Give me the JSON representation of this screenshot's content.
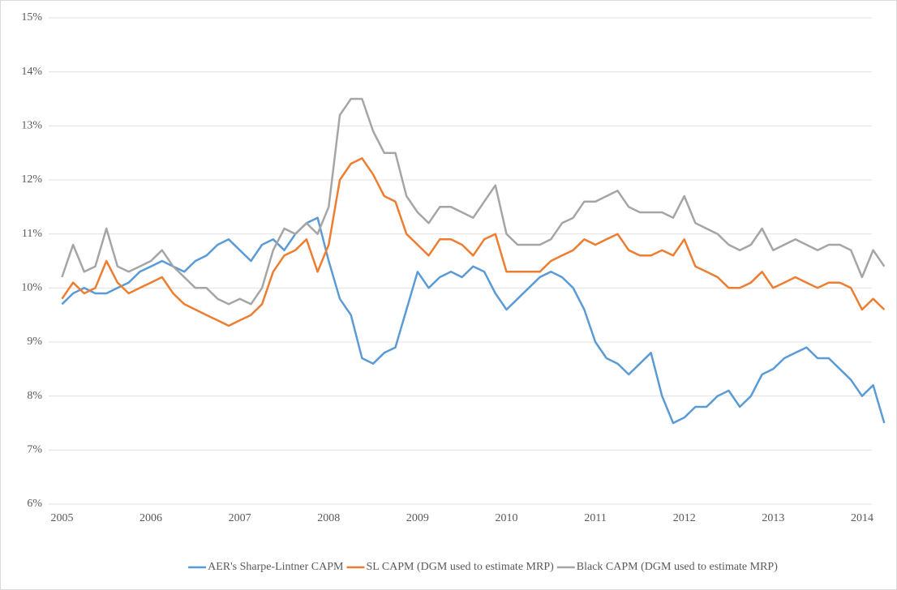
{
  "chart_data": {
    "type": "line",
    "x": [
      2005,
      2005.125,
      2005.25,
      2005.375,
      2005.5,
      2005.625,
      2005.75,
      2005.875,
      2006,
      2006.125,
      2006.25,
      2006.375,
      2006.5,
      2006.625,
      2006.75,
      2006.875,
      2007,
      2007.125,
      2007.25,
      2007.375,
      2007.5,
      2007.625,
      2007.75,
      2007.875,
      2008,
      2008.125,
      2008.25,
      2008.375,
      2008.5,
      2008.625,
      2008.75,
      2008.875,
      2009,
      2009.125,
      2009.25,
      2009.375,
      2009.5,
      2009.625,
      2009.75,
      2009.875,
      2010,
      2010.125,
      2010.25,
      2010.375,
      2010.5,
      2010.625,
      2010.75,
      2010.875,
      2011,
      2011.125,
      2011.25,
      2011.375,
      2011.5,
      2011.625,
      2011.75,
      2011.875,
      2012,
      2012.125,
      2012.25,
      2012.375,
      2012.5,
      2012.625,
      2012.75,
      2012.875,
      2013,
      2013.125,
      2013.25,
      2013.375,
      2013.5,
      2013.625,
      2013.75,
      2013.875,
      2014,
      2014.125,
      2014.25
    ],
    "series": [
      {
        "name": "AER's Sharpe-Lintner CAPM",
        "color": "#5b9bd5",
        "values": [
          9.7,
          9.9,
          10.0,
          9.9,
          9.9,
          10.0,
          10.1,
          10.3,
          10.4,
          10.5,
          10.4,
          10.3,
          10.5,
          10.6,
          10.8,
          10.9,
          10.7,
          10.5,
          10.8,
          10.9,
          10.7,
          11.0,
          11.2,
          11.3,
          10.5,
          9.8,
          9.5,
          8.7,
          8.6,
          8.8,
          8.9,
          9.6,
          10.3,
          10.0,
          10.2,
          10.3,
          10.2,
          10.4,
          10.3,
          9.9,
          9.6,
          9.8,
          10.0,
          10.2,
          10.3,
          10.2,
          10.0,
          9.6,
          9.0,
          8.7,
          8.6,
          8.4,
          8.6,
          8.8,
          8.0,
          7.5,
          7.6,
          7.8,
          7.8,
          8.0,
          8.1,
          7.8,
          8.0,
          8.4,
          8.5,
          8.7,
          8.8,
          8.9,
          8.7,
          8.7,
          8.5,
          8.3,
          8.0,
          8.2,
          7.5
        ]
      },
      {
        "name": "SL CAPM (DGM used to estimate MRP)",
        "color": "#ed7d31",
        "values": [
          9.8,
          10.1,
          9.9,
          10.0,
          10.5,
          10.1,
          9.9,
          10.0,
          10.1,
          10.2,
          9.9,
          9.7,
          9.6,
          9.5,
          9.4,
          9.3,
          9.4,
          9.5,
          9.7,
          10.3,
          10.6,
          10.7,
          10.9,
          10.3,
          10.8,
          12.0,
          12.3,
          12.4,
          12.1,
          11.7,
          11.6,
          11.0,
          10.8,
          10.6,
          10.9,
          10.9,
          10.8,
          10.6,
          10.9,
          11.0,
          10.3,
          10.3,
          10.3,
          10.3,
          10.5,
          10.6,
          10.7,
          10.9,
          10.8,
          10.9,
          11.0,
          10.7,
          10.6,
          10.6,
          10.7,
          10.6,
          10.9,
          10.4,
          10.3,
          10.2,
          10.0,
          10.0,
          10.1,
          10.3,
          10.0,
          10.1,
          10.2,
          10.1,
          10.0,
          10.1,
          10.1,
          10.0,
          9.6,
          9.8,
          9.6
        ]
      },
      {
        "name": "Black CAPM (DGM used to estimate MRP)",
        "color": "#a5a5a5",
        "values": [
          10.2,
          10.8,
          10.3,
          10.4,
          11.1,
          10.4,
          10.3,
          10.4,
          10.5,
          10.7,
          10.4,
          10.2,
          10.0,
          10.0,
          9.8,
          9.7,
          9.8,
          9.7,
          10.0,
          10.7,
          11.1,
          11.0,
          11.2,
          11.0,
          11.5,
          13.2,
          13.5,
          13.5,
          12.9,
          12.5,
          12.5,
          11.7,
          11.4,
          11.2,
          11.5,
          11.5,
          11.4,
          11.3,
          11.6,
          11.9,
          11.0,
          10.8,
          10.8,
          10.8,
          10.9,
          11.2,
          11.3,
          11.6,
          11.6,
          11.7,
          11.8,
          11.5,
          11.4,
          11.4,
          11.4,
          11.3,
          11.7,
          11.2,
          11.1,
          11.0,
          10.8,
          10.7,
          10.8,
          11.1,
          10.7,
          10.8,
          10.9,
          10.8,
          10.7,
          10.8,
          10.8,
          10.7,
          10.2,
          10.7,
          10.4
        ]
      }
    ],
    "xlim": [
      2004.85,
      2014.11
    ],
    "xticks": [
      2005,
      2006,
      2007,
      2008,
      2009,
      2010,
      2011,
      2012,
      2013,
      2014
    ],
    "ylim": [
      6,
      15
    ],
    "yticks": [
      {
        "value": 6,
        "label": "6%"
      },
      {
        "value": 7,
        "label": "7%"
      },
      {
        "value": 8,
        "label": "8%"
      },
      {
        "value": 9,
        "label": "9%"
      },
      {
        "value": 10,
        "label": "10%"
      },
      {
        "value": 11,
        "label": "11%"
      },
      {
        "value": 12,
        "label": "12%"
      },
      {
        "value": 13,
        "label": "13%"
      },
      {
        "value": 14,
        "label": "14%"
      },
      {
        "value": 15,
        "label": "15%"
      }
    ],
    "grid": true,
    "legend": "bottom"
  }
}
